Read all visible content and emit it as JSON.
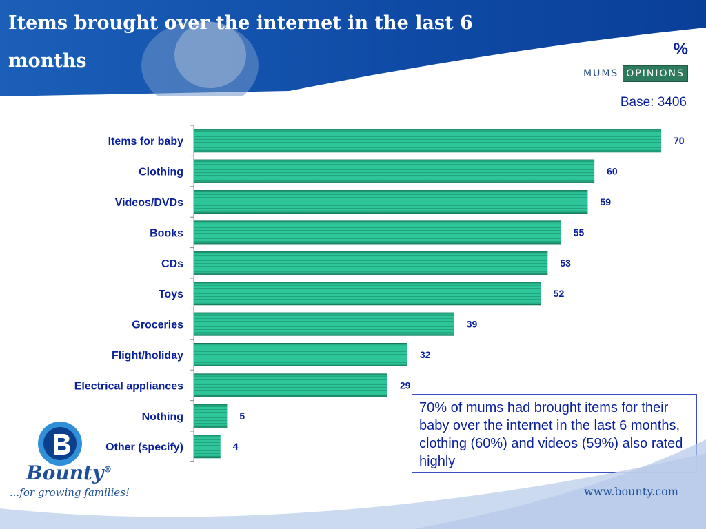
{
  "title": "Items brought over the internet in the last 6 months",
  "unit": "%",
  "logo": {
    "mums": "MUMS",
    "opinions": "OPINIONS"
  },
  "base_label": "Base: 3406",
  "note": "70% of mums had brought items for their baby over the internet in the last 6 months, clothing (60%) and videos (59%) also rated highly",
  "brand": {
    "name": "Bounty",
    "registered": "®",
    "tagline": "...for growing families!",
    "url": "www.bounty.com"
  },
  "colors": {
    "bar": "#2ec59a",
    "bar_dark": "#1a7a5c",
    "label": "#0a1f9a",
    "header": "#1450a8"
  },
  "chart_data": {
    "type": "bar",
    "orientation": "horizontal",
    "categories": [
      "Items for baby",
      "Clothing",
      "Videos/DVDs",
      "Books",
      "CDs",
      "Toys",
      "Groceries",
      "Flight/holiday",
      "Electrical appliances",
      "Nothing",
      "Other (specify)"
    ],
    "values": [
      70,
      60,
      59,
      55,
      53,
      52,
      39,
      32,
      29,
      5,
      4
    ],
    "xlim": [
      0,
      70
    ],
    "grid": false
  }
}
